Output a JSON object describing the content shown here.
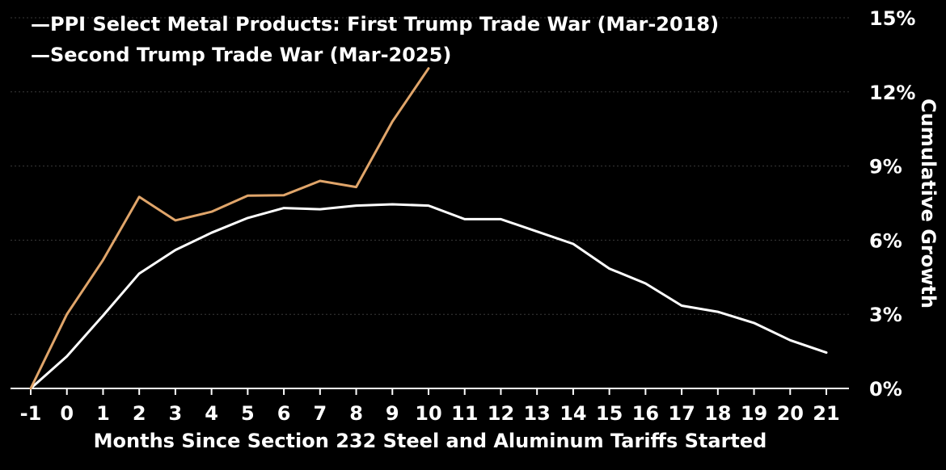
{
  "chart_data": {
    "type": "line",
    "title": "",
    "xlabel": "Months Since Section 232 Steel and Aluminum Tariffs Started",
    "ylabel": "Cumulative Growth",
    "x": [
      -1,
      0,
      1,
      2,
      3,
      4,
      5,
      6,
      7,
      8,
      9,
      10,
      11,
      12,
      13,
      14,
      15,
      16,
      17,
      18,
      19,
      20,
      21
    ],
    "x_tick_labels": [
      "-1",
      "0",
      "1",
      "2",
      "3",
      "4",
      "5",
      "6",
      "7",
      "8",
      "9",
      "10",
      "11",
      "12",
      "13",
      "14",
      "15",
      "16",
      "17",
      "18",
      "19",
      "20",
      "21"
    ],
    "y_ticks": [
      0,
      3,
      6,
      9,
      12,
      15
    ],
    "y_tick_labels": [
      "0%",
      "3%",
      "6%",
      "9%",
      "12%",
      "15%"
    ],
    "ylim": [
      0,
      15
    ],
    "xlim": [
      -1,
      21
    ],
    "grid": "horizontal",
    "legend_position": "top-left",
    "series": [
      {
        "name": "PPI Select Metal Products: First Trump Trade War (Mar-2018)",
        "legend_label": "—PPI Select Metal Products: First Trump Trade War (Mar-2018)",
        "color": "#ffffff",
        "x": [
          -1,
          0,
          1,
          2,
          3,
          4,
          5,
          6,
          7,
          8,
          9,
          10,
          11,
          12,
          13,
          14,
          15,
          16,
          17,
          18,
          19,
          20,
          21
        ],
        "values": [
          0,
          1.3,
          2.95,
          4.65,
          5.6,
          6.3,
          6.9,
          7.3,
          7.25,
          7.4,
          7.45,
          7.4,
          6.85,
          6.85,
          6.35,
          5.85,
          4.85,
          4.25,
          3.35,
          3.1,
          2.65,
          1.95,
          1.45
        ]
      },
      {
        "name": "Second Trump Trade War (Mar-2025)",
        "legend_label": "—Second Trump Trade War (Mar-2025)",
        "color": "#e0a56a",
        "x": [
          -1,
          0,
          1,
          2,
          3,
          4,
          5,
          6,
          7,
          8,
          9,
          10
        ],
        "values": [
          0,
          3.0,
          5.2,
          7.75,
          6.8,
          7.15,
          7.8,
          7.82,
          8.4,
          8.15,
          10.8,
          12.95
        ]
      }
    ]
  }
}
